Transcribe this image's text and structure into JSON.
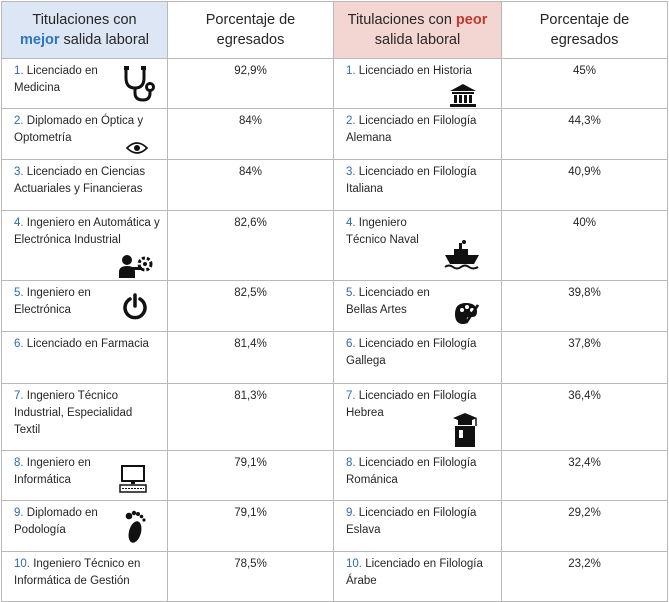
{
  "header": {
    "best_title_pre": "Titulaciones con",
    "best_title_hl": "mejor",
    "best_title_post": "salida laboral",
    "pct_title": "Porcentaje de egresados",
    "worst_title_pre": "Titulaciones con",
    "worst_title_hl": "peor",
    "worst_title_post": "salida laboral",
    "pct_title2": "Porcentaje de egresados"
  },
  "colors": {
    "best_header_bg": "#dce6f4",
    "worst_header_bg": "#f3d6d1",
    "best_accent": "#2e75c3",
    "worst_accent": "#c0392b"
  },
  "best": [
    {
      "num": "1.",
      "name": "Licenciado en Medicina",
      "pct": "92,9%",
      "icon": "stethoscope-icon"
    },
    {
      "num": "2.",
      "name": "Diplomado en Óptica y Optometría",
      "pct": "84%",
      "icon": "eye-icon"
    },
    {
      "num": "3.",
      "name": "Licenciado en Ciencias Actuariales y Financieras",
      "pct": "84%",
      "icon": ""
    },
    {
      "num": "4.",
      "name": "Ingeniero en Automática y Electrónica Industrial",
      "pct": "82,6%",
      "icon": "engineer-gear-icon"
    },
    {
      "num": "5.",
      "name": "Ingeniero en Electrónica",
      "pct": "82,5%",
      "icon": "power-icon"
    },
    {
      "num": "6.",
      "name": "Licenciado en Farmacia",
      "pct": "81,4%",
      "icon": ""
    },
    {
      "num": "7.",
      "name": "Ingeniero Técnico Industrial, Especialidad Textil",
      "pct": "81,3%",
      "icon": ""
    },
    {
      "num": "8.",
      "name": "Ingeniero en Informática",
      "pct": "79,1%",
      "icon": "computer-icon"
    },
    {
      "num": "9.",
      "name": "Diplomado en Podología",
      "pct": "79,1%",
      "icon": "footprint-icon"
    },
    {
      "num": "10.",
      "name": "Ingeniero Técnico en Informática de Gestión",
      "pct": "78,5%",
      "icon": ""
    }
  ],
  "worst": [
    {
      "num": "1.",
      "name": "Licenciado en Historia",
      "pct": "45%",
      "icon": "museum-icon"
    },
    {
      "num": "2.",
      "name": "Licenciado en Filología Alemana",
      "pct": "44,3%",
      "icon": ""
    },
    {
      "num": "3.",
      "name": "Licenciado en Filología Italiana",
      "pct": "40,9%",
      "icon": ""
    },
    {
      "num": "4.",
      "name": "Ingeniero Técnico Naval",
      "pct": "40%",
      "icon": "ship-icon"
    },
    {
      "num": "5.",
      "name": "Licenciado en Bellas Artes",
      "pct": "39,8%",
      "icon": "palette-icon"
    },
    {
      "num": "6.",
      "name": "Licenciado en Filología Gallega",
      "pct": "37,8%",
      "icon": ""
    },
    {
      "num": "7.",
      "name": "Licenciado en Filología Hebrea",
      "pct": "36,4%",
      "icon": "book-graduation-icon"
    },
    {
      "num": "8.",
      "name": "Licenciado en Filología Románica",
      "pct": "32,4%",
      "icon": ""
    },
    {
      "num": "9.",
      "name": "Licenciado en Filología Eslava",
      "pct": "29,2%",
      "icon": ""
    },
    {
      "num": "10.",
      "name": "Licenciado en Filología Árabe",
      "pct": "23,2%",
      "icon": ""
    }
  ]
}
